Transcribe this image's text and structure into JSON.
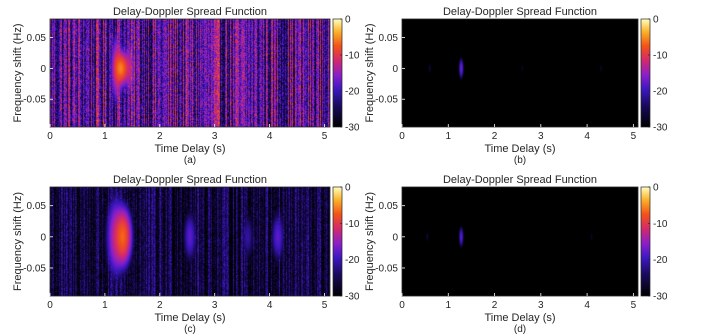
{
  "chart_data": [
    {
      "type": "heatmap",
      "panel_label": "(a)",
      "title": "Delay-Doppler Spread Function",
      "xlabel": "Time Delay (s)",
      "ylabel": "Frequency shift (Hz)",
      "xlim": [
        0,
        5.1
      ],
      "ylim": [
        -0.095,
        0.08
      ],
      "xticks": [
        0,
        1,
        2,
        3,
        4,
        5
      ],
      "xtick_labels": [
        "0",
        "1",
        "2",
        "3",
        "4",
        "5"
      ],
      "yticks": [
        0.05,
        0,
        -0.05
      ],
      "ytick_labels": [
        "0.05",
        "0",
        "-0.05"
      ],
      "colorbar": {
        "ticks": [
          0,
          -10,
          -20,
          -30
        ],
        "labels": [
          "0",
          "-10",
          "-20",
          "-30"
        ],
        "range": [
          -30,
          0
        ]
      },
      "background_level_db": -19,
      "noise_db": 8,
      "peaks": [
        {
          "delay": 1.3,
          "doppler": 0.0,
          "level_db": -6,
          "width_delay": 0.06,
          "width_doppler": 0.012
        },
        {
          "delay": 1.22,
          "doppler": 0.0,
          "level_db": -11,
          "width_delay": 0.05,
          "width_doppler": 0.025
        },
        {
          "delay": 1.45,
          "doppler": 0.0,
          "level_db": -13,
          "width_delay": 0.05,
          "width_doppler": 0.02
        }
      ]
    },
    {
      "type": "heatmap",
      "panel_label": "(b)",
      "title": "Delay-Doppler Spread Function",
      "xlabel": "Time Delay (s)",
      "ylabel": "Frequency shift (Hz)",
      "xlim": [
        0,
        5.1
      ],
      "ylim": [
        -0.095,
        0.08
      ],
      "xticks": [
        0,
        1,
        2,
        3,
        4,
        5
      ],
      "xtick_labels": [
        "0",
        "1",
        "2",
        "3",
        "4",
        "5"
      ],
      "yticks": [
        0.05,
        0,
        -0.05
      ],
      "ytick_labels": [
        "0.05",
        "0",
        "-0.05"
      ],
      "colorbar": {
        "ticks": [
          0,
          -10,
          -20,
          -30
        ],
        "labels": [
          "0",
          "-10",
          "-20",
          "-30"
        ],
        "range": [
          -30,
          0
        ]
      },
      "background_level_db": -30,
      "noise_db": 0,
      "peaks": [
        {
          "delay": 1.28,
          "doppler": 0.0,
          "level_db": -17,
          "width_delay": 0.025,
          "width_doppler": 0.008
        },
        {
          "delay": 0.6,
          "doppler": 0.0,
          "level_db": -26,
          "width_delay": 0.02,
          "width_doppler": 0.006
        },
        {
          "delay": 2.6,
          "doppler": 0.0,
          "level_db": -27,
          "width_delay": 0.02,
          "width_doppler": 0.006
        },
        {
          "delay": 4.3,
          "doppler": 0.0,
          "level_db": -27,
          "width_delay": 0.02,
          "width_doppler": 0.006
        }
      ]
    },
    {
      "type": "heatmap",
      "panel_label": "(c)",
      "title": "Delay-Doppler Spread Function",
      "xlabel": "Time Delay (s)",
      "ylabel": "Frequency shift (Hz)",
      "xlim": [
        0,
        5.1
      ],
      "ylim": [
        -0.095,
        0.08
      ],
      "xticks": [
        0,
        1,
        2,
        3,
        4,
        5
      ],
      "xtick_labels": [
        "0",
        "1",
        "2",
        "3",
        "4",
        "5"
      ],
      "yticks": [
        0.05,
        0,
        -0.05
      ],
      "ytick_labels": [
        "0.05",
        "0",
        "-0.05"
      ],
      "colorbar": {
        "ticks": [
          0,
          -10,
          -20,
          -30
        ],
        "labels": [
          "0",
          "-10",
          "-20",
          "-30"
        ],
        "range": [
          -30,
          0
        ]
      },
      "background_level_db": -26,
      "noise_db": 5,
      "peaks": [
        {
          "delay": 1.33,
          "doppler": 0.0,
          "level_db": -7,
          "width_delay": 0.07,
          "width_doppler": 0.02
        },
        {
          "delay": 1.2,
          "doppler": 0.0,
          "level_db": -13,
          "width_delay": 0.08,
          "width_doppler": 0.03
        },
        {
          "delay": 2.55,
          "doppler": 0.0,
          "level_db": -18,
          "width_delay": 0.06,
          "width_doppler": 0.02
        },
        {
          "delay": 4.15,
          "doppler": 0.0,
          "level_db": -18,
          "width_delay": 0.06,
          "width_doppler": 0.02
        },
        {
          "delay": 3.6,
          "doppler": 0.0,
          "level_db": -21,
          "width_delay": 0.06,
          "width_doppler": 0.02
        }
      ]
    },
    {
      "type": "heatmap",
      "panel_label": "(d)",
      "title": "Delay-Doppler Spread Function",
      "xlabel": "Time Delay (s)",
      "ylabel": "Frequency shift (Hz)",
      "xlim": [
        0,
        5.1
      ],
      "ylim": [
        -0.095,
        0.08
      ],
      "xticks": [
        0,
        1,
        2,
        3,
        4,
        5
      ],
      "xtick_labels": [
        "0",
        "1",
        "2",
        "3",
        "4",
        "5"
      ],
      "yticks": [
        0.05,
        0,
        -0.05
      ],
      "ytick_labels": [
        "0.05",
        "0",
        "-0.05"
      ],
      "colorbar": {
        "ticks": [
          0,
          -10,
          -20,
          -30
        ],
        "labels": [
          "0",
          "-10",
          "-20",
          "-30"
        ],
        "range": [
          -30,
          0
        ]
      },
      "background_level_db": -30,
      "noise_db": 0,
      "peaks": [
        {
          "delay": 1.28,
          "doppler": 0.0,
          "level_db": -18,
          "width_delay": 0.025,
          "width_doppler": 0.008
        },
        {
          "delay": 0.55,
          "doppler": 0.0,
          "level_db": -26,
          "width_delay": 0.02,
          "width_doppler": 0.006
        },
        {
          "delay": 4.1,
          "doppler": 0.0,
          "level_db": -27,
          "width_delay": 0.02,
          "width_doppler": 0.006
        }
      ]
    }
  ]
}
